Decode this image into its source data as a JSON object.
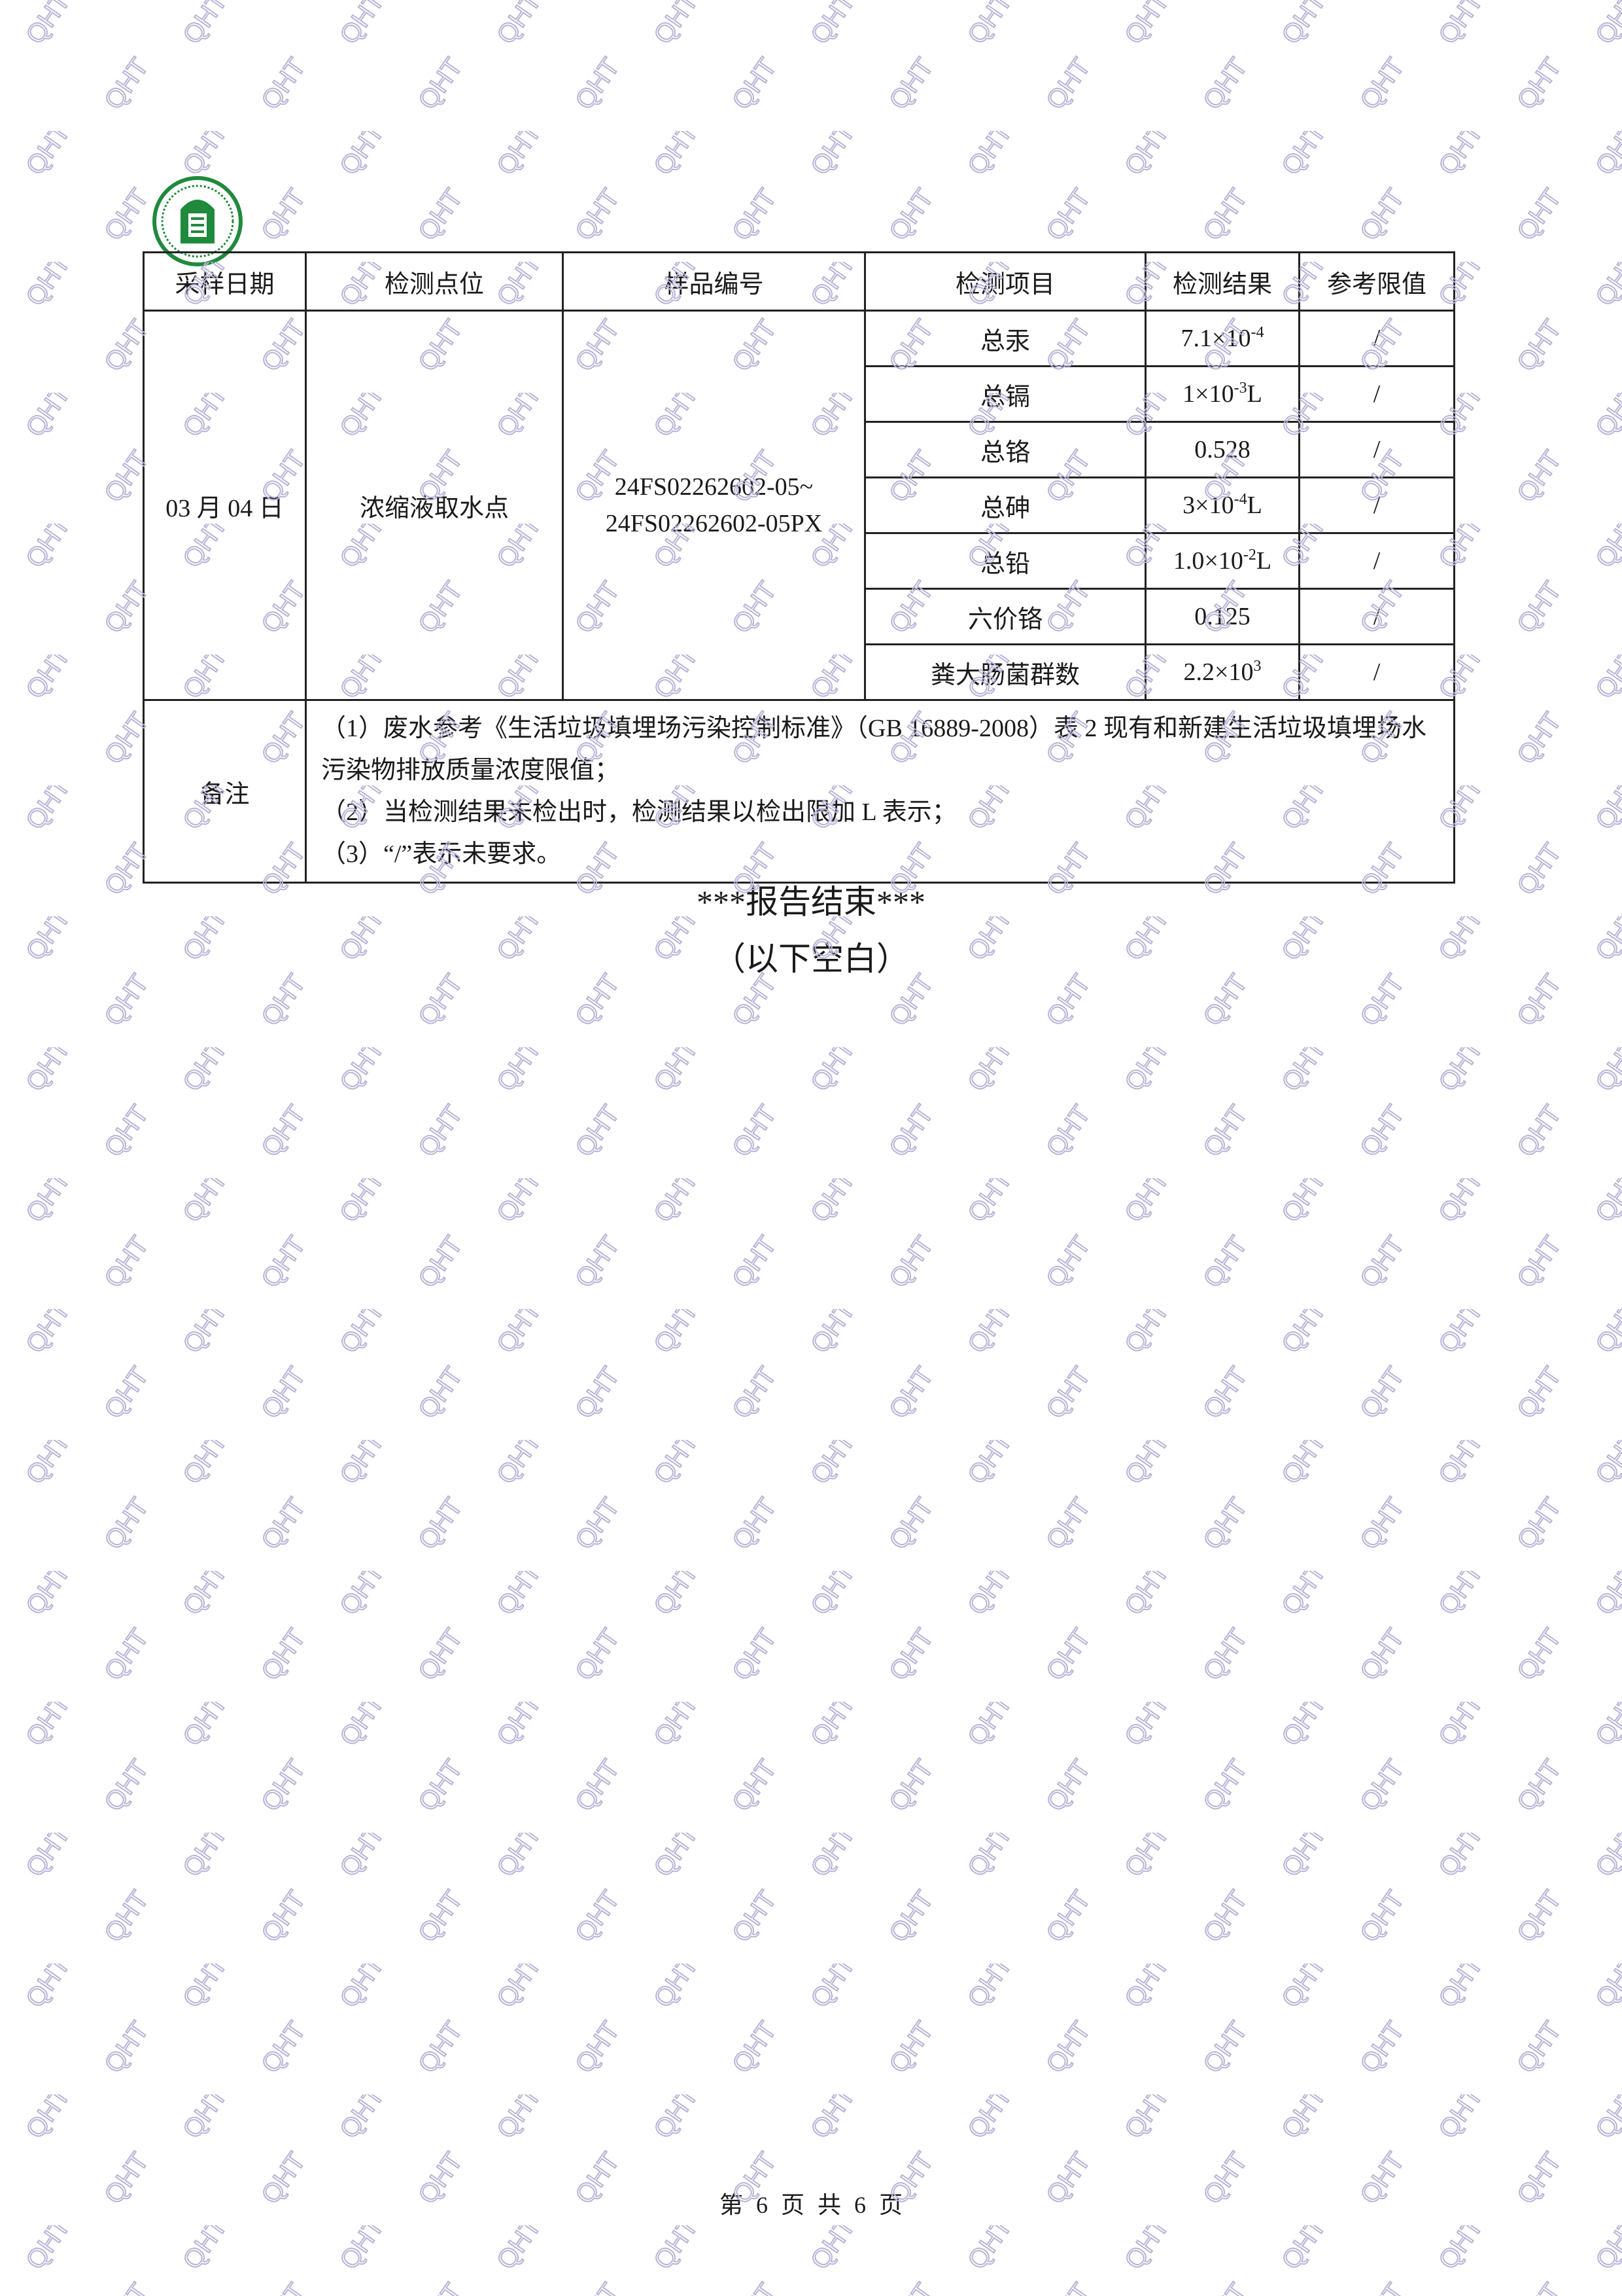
{
  "watermark_text": "QHT",
  "colors": {
    "watermark": "#b9b3d6",
    "logo_green": "#1f8a3c"
  },
  "table": {
    "headers": [
      "采样日期",
      "检测点位",
      "样品编号",
      "检测项目",
      "检测结果",
      "参考限值"
    ],
    "sampling_date": "03 月 04 日",
    "location": "浓缩液取水点",
    "sample_id_line1": "24FS02262602-05~",
    "sample_id_line2": "24FS02262602-05PX",
    "rows": [
      {
        "item": "总汞",
        "result_base": "7.1×10",
        "result_exp": "-4",
        "result_suffix": "",
        "limit": "/"
      },
      {
        "item": "总镉",
        "result_base": "1×10",
        "result_exp": "-3",
        "result_suffix": "L",
        "limit": "/"
      },
      {
        "item": "总铬",
        "result_base": "0.528",
        "result_exp": "",
        "result_suffix": "",
        "limit": "/"
      },
      {
        "item": "总砷",
        "result_base": "3×10",
        "result_exp": "-4",
        "result_suffix": "L",
        "limit": "/"
      },
      {
        "item": "总铅",
        "result_base": "1.0×10",
        "result_exp": "-2",
        "result_suffix": "L",
        "limit": "/"
      },
      {
        "item": "六价铬",
        "result_base": "0.125",
        "result_exp": "",
        "result_suffix": "",
        "limit": "/"
      },
      {
        "item": "粪大肠菌群数",
        "result_base": "2.2×10",
        "result_exp": "3",
        "result_suffix": "",
        "limit": "/"
      }
    ],
    "notes_label": "备注",
    "notes": [
      "（1）废水参考《生活垃圾填埋场污染控制标准》（GB 16889-2008）表 2 现有和新建生活垃圾填埋场水污染物排放质量浓度限值；",
      "（2）当检测结果未检出时，检测结果以检出限加 L 表示；",
      "（3）“/”表示未要求。"
    ]
  },
  "end_text": "***报告结束***",
  "blank_text": "（以下空白）",
  "footer": {
    "prefix": "第",
    "page": "6",
    "mid1": "页",
    "mid2": "共",
    "total": "6",
    "suffix": "页"
  }
}
